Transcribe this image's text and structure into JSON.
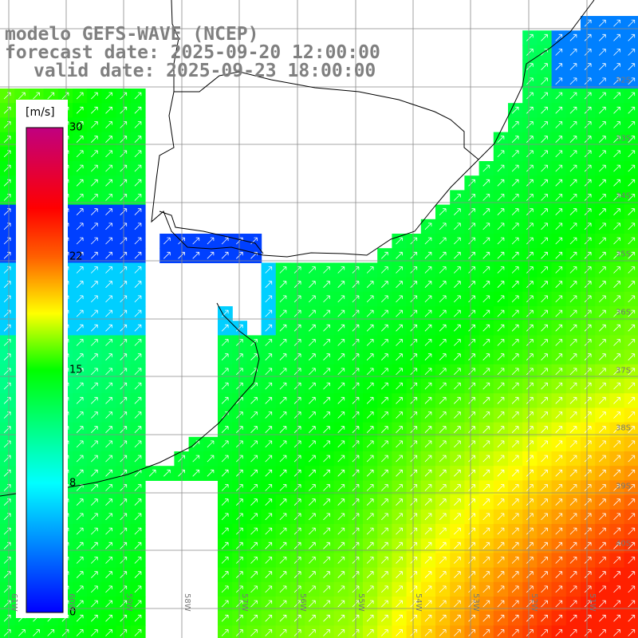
{
  "title": {
    "line1": "modelo GEFS-WAVE (NCEP)",
    "line2": "forecast date: 2025-09-20 12:00:00",
    "line3": "valid date: 2025-09-23 18:00:00"
  },
  "colorbar": {
    "unit": "[m/s]",
    "min": 0,
    "max": 30,
    "ticks": [
      "30",
      "22",
      "15",
      "8",
      "0"
    ],
    "tick_values": [
      30,
      22,
      15,
      8,
      0
    ],
    "stops": [
      {
        "v": 0,
        "color": "#0000ff"
      },
      {
        "v": 8,
        "color": "#00ffff"
      },
      {
        "v": 15,
        "color": "#00ff00"
      },
      {
        "v": 18.5,
        "color": "#ffff00"
      },
      {
        "v": 22,
        "color": "#ff6000"
      },
      {
        "v": 25,
        "color": "#ff0000"
      },
      {
        "v": 30,
        "color": "#c00080"
      }
    ]
  },
  "map": {
    "lon_range": [
      -61.1,
      -50.0
    ],
    "lat_range": [
      -41.2,
      -31.2
    ],
    "lon_labels": [
      "61W",
      "60W",
      "59W",
      "58W",
      "57W",
      "56W",
      "55W",
      "54W",
      "53W",
      "52W",
      "51W"
    ],
    "lat_labels": [
      "32S",
      "33S",
      "34S",
      "35S",
      "36S",
      "37S",
      "38S",
      "39S",
      "40S"
    ]
  }
}
